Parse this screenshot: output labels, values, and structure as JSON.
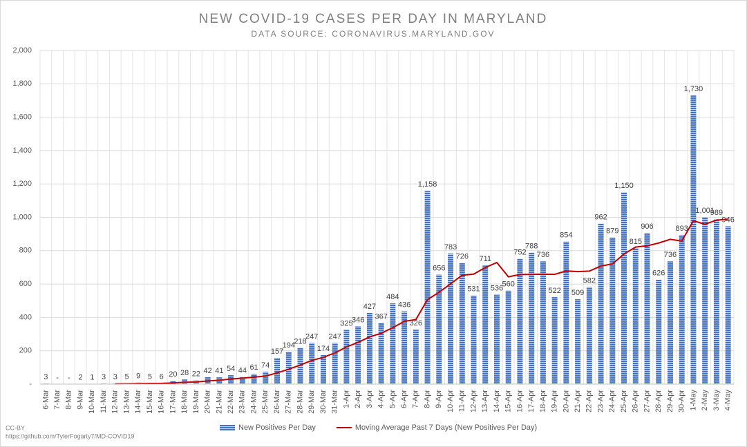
{
  "chart_data": {
    "type": "bar",
    "title": "NEW COVID-19 CASES PER DAY IN MARYLAND",
    "subtitle": "DATA SOURCE: CORONAVIRUS.MARYLAND.GOV",
    "footnote": "CC-BY",
    "source_url": "https://github.com/TylerFogarty7/MD-COVID19",
    "categories": [
      "6-Mar",
      "7-Mar",
      "8-Mar",
      "9-Mar",
      "10-Mar",
      "11-Mar",
      "12-Mar",
      "13-Mar",
      "14-Mar",
      "15-Mar",
      "16-Mar",
      "17-Mar",
      "18-Mar",
      "19-Mar",
      "20-Mar",
      "21-Mar",
      "22-Mar",
      "23-Mar",
      "24-Mar",
      "25-Mar",
      "26-Mar",
      "27-Mar",
      "28-Mar",
      "29-Mar",
      "30-Mar",
      "31-Mar",
      "1-Apr",
      "2-Apr",
      "3-Apr",
      "4-Apr",
      "5-Apr",
      "6-Apr",
      "7-Apr",
      "8-Apr",
      "9-Apr",
      "10-Apr",
      "11-Apr",
      "12-Apr",
      "13-Apr",
      "14-Apr",
      "15-Apr",
      "16-Apr",
      "17-Apr",
      "18-Apr",
      "19-Apr",
      "20-Apr",
      "21-Apr",
      "22-Apr",
      "23-Apr",
      "24-Apr",
      "25-Apr",
      "26-Apr",
      "27-Apr",
      "28-Apr",
      "29-Apr",
      "30-Apr",
      "1-May",
      "2-May",
      "3-May",
      "4-May"
    ],
    "series": [
      {
        "name": "New Positives Per Day",
        "type": "bar",
        "color": "#4472c4",
        "values": [
          3,
          0,
          0,
          2,
          1,
          3,
          3,
          5,
          9,
          5,
          6,
          20,
          28,
          22,
          42,
          41,
          54,
          44,
          61,
          74,
          157,
          194,
          218,
          247,
          174,
          247,
          325,
          346,
          427,
          367,
          484,
          436,
          326,
          1158,
          656,
          783,
          726,
          531,
          711,
          536,
          560,
          752,
          788,
          736,
          522,
          854,
          509,
          582,
          962,
          879,
          1150,
          815,
          906,
          626,
          736,
          893,
          1730,
          1001,
          989,
          946
        ],
        "value_labels": [
          "3",
          "-",
          "-",
          "2",
          "1",
          "3",
          "3",
          "5",
          "9",
          "5",
          "6",
          "20",
          "28",
          "22",
          "42",
          "41",
          "54",
          "44",
          "61",
          "74",
          "157",
          "194",
          "218",
          "247",
          "174",
          "247",
          "325",
          "346",
          "427",
          "367",
          "484",
          "436",
          "326",
          "1,158",
          "656",
          "783",
          "726",
          "531",
          "711",
          "536",
          "560",
          "752",
          "788",
          "736",
          "522",
          "854",
          "509",
          "582",
          "962",
          "879",
          "1,150",
          "815",
          "906",
          "626",
          "736",
          "893",
          "1,730",
          "1,001",
          "989",
          "946"
        ]
      },
      {
        "name": "Moving Average Past 7 Days (New Positives Per Day)",
        "type": "line",
        "color": "#c00000",
        "values": [
          null,
          null,
          null,
          null,
          null,
          null,
          1.7,
          2.0,
          3.3,
          4.0,
          4.6,
          7.3,
          10.9,
          13.6,
          18.9,
          23.4,
          30.4,
          35.9,
          41.7,
          48.3,
          67.6,
          89.3,
          114.6,
          142.1,
          160.7,
          187.3,
          223.1,
          250.1,
          283.4,
          304.7,
          338.6,
          376.0,
          387.3,
          506.3,
          550.6,
          601.4,
          652.7,
          659.4,
          698.7,
          728.7,
          643.3,
          657.0,
          657.7,
          659.1,
          657.9,
          678.3,
          674.4,
          677.6,
          707.6,
          720.6,
          779.7,
          821.6,
          829.0,
          845.7,
          867.7,
          857.9,
          979.4,
          958.1,
          983.0,
          988.7
        ]
      }
    ],
    "ylim": [
      0,
      2000
    ],
    "yticks": [
      {
        "value": 0,
        "label": "-"
      },
      200,
      400,
      600,
      800,
      {
        "value": 1000,
        "label": "1,000"
      },
      {
        "value": 1200,
        "label": "1,200"
      },
      {
        "value": 1400,
        "label": "1,400"
      },
      {
        "value": 1600,
        "label": "1,600"
      },
      {
        "value": 1800,
        "label": "1,800"
      },
      {
        "value": 2000,
        "label": "2,000"
      }
    ],
    "grid": true,
    "legend": "bottom"
  }
}
